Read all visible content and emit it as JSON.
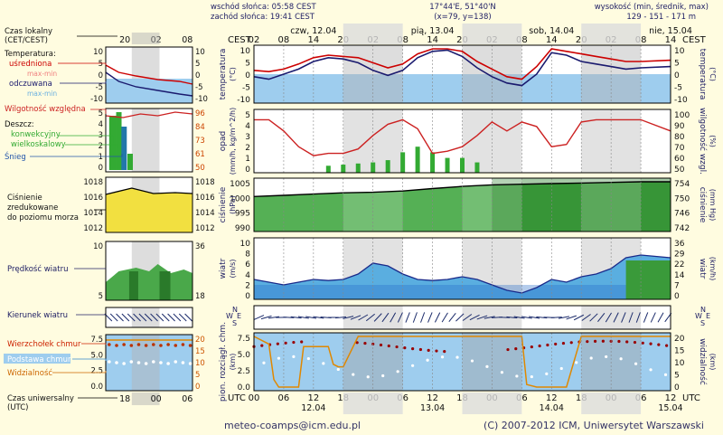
{
  "header": {
    "sunrise": "wschód słońca: 05:58 CEST",
    "sunset": "zachód słońca: 19:41 CEST",
    "coords": "17°44'E, 51°40'N",
    "grid": "(x=79, y=138)",
    "altitude_label": "wysokość (min, średnik, max)",
    "altitude_values": "129 - 151 - 171 m"
  },
  "footer": {
    "email": "meteo-coamps@icm.edu.pl",
    "copyright": "(C) 2007-2012 ICM, Uniwersytet Warszawski"
  },
  "time_axis": {
    "top_label": "CEST",
    "bottom_label": "UTC",
    "top_hour_ticks": [
      "02",
      "08",
      "14",
      "20",
      "02",
      "08",
      "14",
      "20",
      "02",
      "08",
      "14",
      "20",
      "02",
      "08",
      "14"
    ],
    "bottom_hour_ticks": [
      "00",
      "06",
      "12",
      "18",
      "00",
      "06",
      "12",
      "18",
      "00",
      "06",
      "12",
      "18",
      "00",
      "06",
      "12"
    ],
    "day_labels_top": [
      "czw, 12.04",
      "pią, 13.04",
      "sob, 14.04",
      "nie, 15.04"
    ],
    "day_labels_bottom": [
      "12.04",
      "13.04",
      "14.04",
      "15.04"
    ]
  },
  "legend": {
    "local_time": "Czas lokalny",
    "local_time_unit": "(CET/CEST)",
    "local_ticks": [
      "20",
      "02",
      "08"
    ],
    "temperature": "Temperatura:",
    "temp_avg": "uśredniona",
    "temp_maxmin": "max-min",
    "temp_felt": "odczuwana",
    "temp_felt_maxmin": "max-min",
    "humidity": "Wilgotność względna",
    "rain": "Deszcz:",
    "rain_conv": "konwekcyjny",
    "rain_large": "wielkoskalowy",
    "snow": "Śnieg",
    "pressure_l1": "Ciśnienie",
    "pressure_l2": "zredukowane",
    "pressure_l3": "do poziomu morza",
    "wind_speed": "Prędkość wiatru",
    "wind_dir": "Kierunek wiatru",
    "cloud_top": "Wierzchołek chmur",
    "cloud_base": "Podstawa chmur",
    "visibility": "Widzialność",
    "utc_time": "Czas uniwersalny",
    "utc_unit": "(UTC)",
    "utc_ticks": [
      "18",
      "00",
      "06"
    ],
    "temp_ticks": [
      "10",
      "5",
      "0",
      "-5",
      "-10"
    ],
    "hum_ticks": [
      "96",
      "84",
      "73",
      "61",
      "50"
    ],
    "rain_ticks": [
      "5",
      "4",
      "3",
      "2",
      "1",
      "0"
    ],
    "pres_ticks": [
      "1018",
      "1016",
      "1014",
      "1012"
    ],
    "pres_ticks_right": [
      "1018",
      "1016",
      "1014",
      "1012"
    ],
    "wind_ticks": [
      "10",
      "5"
    ],
    "wind_ticks_right": [
      "36",
      "18"
    ],
    "cloud_ticks": [
      "7.5",
      "5.0",
      "2.5",
      "0.0"
    ],
    "vis_ticks": [
      "20",
      "15",
      "10",
      "5",
      "0"
    ]
  },
  "panels": {
    "temp": {
      "ylabel": "temperatura",
      "unit": "(°C)",
      "ylabel_r": "temperatura",
      "unit_r": "(°C)",
      "ticks": [
        "10",
        "5",
        "0",
        "-5",
        "-10"
      ]
    },
    "rain": {
      "ylabel": "opad",
      "unit": "(mm/h, kg/m^2/h)",
      "ylabel_r": "wilgotność wzgl.",
      "unit_r": "(%)",
      "ticks_l": [
        "5",
        "4",
        "3",
        "2",
        "1",
        "0"
      ],
      "ticks_r": [
        "100",
        "90",
        "80",
        "70",
        "60",
        "50"
      ]
    },
    "pres": {
      "ylabel": "ciśnienie",
      "unit": "(hPa)",
      "ylabel_r": "ciśnienie",
      "unit_r": "(mm Hg)",
      "ticks_l": [
        "1005",
        "1000",
        "995",
        "990"
      ],
      "ticks_r": [
        "754",
        "750",
        "746",
        "742"
      ]
    },
    "wind": {
      "ylabel": "wiatr",
      "unit": "(m/s)",
      "ylabel_r": "wiatr",
      "unit_r": "(km/h)",
      "ticks_l": [
        "10",
        "8",
        "6",
        "4",
        "2",
        "0"
      ],
      "ticks_r": [
        "36",
        "29",
        "22",
        "14",
        "7",
        "0"
      ]
    },
    "dir": {
      "compass": "N",
      "compass_e": "E",
      "compass_s": "S",
      "compass_w": "W"
    },
    "cloud": {
      "ylabel": "pion. rozciągł. chm.",
      "unit": "(km)",
      "ylabel_r": "widzialność",
      "unit_r": "(km)",
      "ticks_l": [
        "7.5",
        "5.0",
        "2.5",
        "0.0"
      ],
      "ticks_r": [
        "20",
        "15",
        "10",
        "5",
        "0"
      ]
    }
  },
  "chart_data": [
    {
      "type": "line",
      "title": "temperatura",
      "x_unit": "hours from 12.04 00 UTC",
      "ylim": [
        -10,
        10
      ],
      "x": [
        0,
        3,
        6,
        9,
        12,
        15,
        18,
        21,
        24,
        27,
        30,
        33,
        36,
        39,
        42,
        45,
        48,
        51,
        54,
        57,
        60,
        63,
        66,
        69,
        72,
        75,
        78,
        84
      ],
      "series": [
        {
          "name": "uśredniona",
          "color": "#cc0000",
          "values": [
            1.5,
            1,
            2,
            4,
            6.5,
            7.5,
            7,
            6.5,
            4.5,
            2.5,
            4,
            8,
            10,
            10,
            9,
            5,
            2,
            -1,
            -2,
            3,
            10,
            9,
            8,
            7,
            6,
            5,
            5,
            5.5
          ]
        },
        {
          "name": "odczuwana",
          "color": "#1a1a6e",
          "values": [
            -1,
            -2,
            0,
            2,
            5,
            6.5,
            6,
            4.5,
            1.5,
            -0.5,
            1.5,
            6.5,
            9,
            9.5,
            7,
            2.5,
            -1,
            -3.5,
            -4.5,
            0,
            8.5,
            7.5,
            5,
            4,
            3,
            2,
            2.5,
            3
          ]
        }
      ]
    },
    {
      "type": "bar",
      "title": "opad",
      "x_unit": "hours from 12.04 00 UTC",
      "ylim": [
        0,
        5
      ],
      "x": [
        15,
        18,
        21,
        24,
        27,
        30,
        33,
        36,
        39,
        42,
        45,
        48,
        51,
        54
      ],
      "series": [
        {
          "name": "konwekcyjny",
          "color": "#33aa33",
          "values": [
            0.3,
            0.4,
            0.5,
            0.6,
            0.8,
            1.5,
            2,
            1.5,
            1,
            1,
            0.6,
            0,
            0,
            0
          ]
        }
      ],
      "humidity": {
        "name": "Wilgotność względna",
        "color": "#cc2222",
        "ylim": [
          50,
          100
        ],
        "x": [
          0,
          3,
          6,
          9,
          12,
          15,
          18,
          21,
          24,
          27,
          30,
          33,
          36,
          39,
          42,
          45,
          48,
          51,
          54,
          57,
          60,
          63,
          66,
          69,
          72,
          75,
          78,
          84
        ],
        "values": [
          94,
          94,
          84,
          70,
          62,
          64,
          64,
          68,
          80,
          90,
          94,
          86,
          64,
          66,
          70,
          80,
          92,
          84,
          92,
          88,
          70,
          72,
          92,
          94,
          94,
          94,
          94,
          84
        ]
      }
    },
    {
      "type": "area",
      "title": "ciśnienie",
      "x_unit": "hours from 12.04 00 UTC",
      "ylim": [
        990,
        1005
      ],
      "x": [
        0,
        6,
        12,
        18,
        24,
        30,
        36,
        42,
        48,
        54,
        60,
        66,
        72,
        78,
        84
      ],
      "values": [
        1000.2,
        1000.6,
        1001,
        1001.4,
        1001.6,
        1002,
        1002.8,
        1003.5,
        1004,
        1004.2,
        1004.4,
        1004.6,
        1004.8,
        1005,
        1005
      ]
    },
    {
      "type": "area",
      "title": "wiatr",
      "x_unit": "hours from 12.04 00 UTC",
      "ylim": [
        0,
        10
      ],
      "x": [
        0,
        3,
        6,
        9,
        12,
        15,
        18,
        21,
        24,
        27,
        30,
        33,
        36,
        39,
        42,
        45,
        48,
        51,
        54,
        57,
        60,
        63,
        66,
        69,
        72,
        75,
        78,
        84
      ],
      "values": [
        3,
        2.5,
        2,
        2.5,
        3,
        2.8,
        3,
        4,
        6,
        5.5,
        4,
        3,
        2.8,
        3,
        3.5,
        3,
        2,
        1,
        0.5,
        1.5,
        3,
        2.5,
        3.5,
        4,
        5,
        7,
        7.5,
        7
      ]
    },
    {
      "type": "line",
      "title": "Widzialność",
      "x_unit": "hours from 12.04 00 UTC",
      "ylim": [
        0,
        20
      ],
      "x": [
        0,
        3,
        4,
        5,
        9,
        10,
        12,
        15,
        16,
        17,
        18,
        20,
        21,
        24,
        30,
        36,
        42,
        48,
        54,
        55,
        57,
        60,
        63,
        66,
        72,
        78,
        84
      ],
      "values": [
        20,
        17,
        3,
        0,
        0,
        16,
        16,
        16,
        9,
        8,
        8,
        16,
        20,
        20,
        20,
        20,
        20,
        20,
        20,
        1,
        0,
        0,
        0,
        20,
        20,
        20,
        20
      ]
    }
  ]
}
